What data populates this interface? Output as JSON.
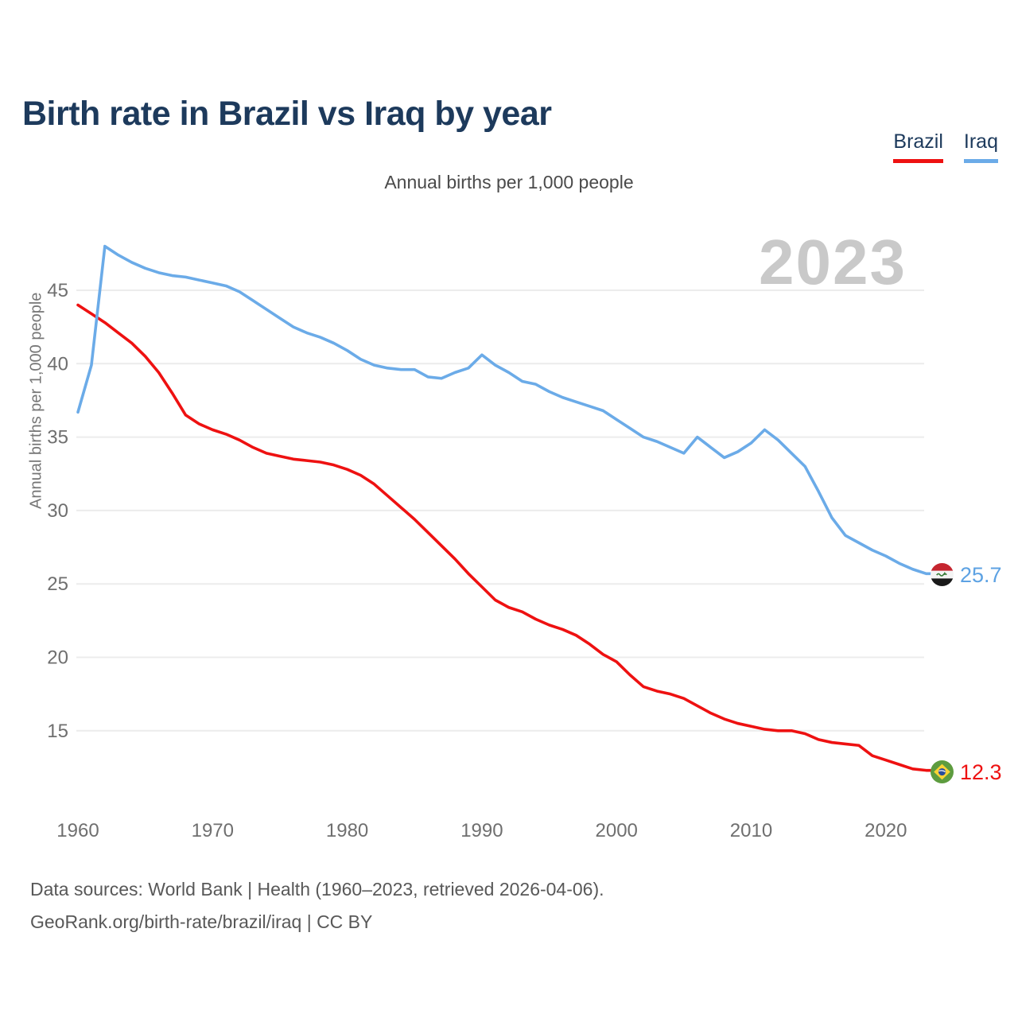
{
  "header": {
    "title": "Birth rate in Brazil vs Iraq by year"
  },
  "legend": {
    "items": [
      {
        "label": "Brazil",
        "color": "#ee1111"
      },
      {
        "label": "Iraq",
        "color": "#6babe8"
      }
    ]
  },
  "chart": {
    "subtitle": "Annual births per 1,000 people",
    "watermark": "2023",
    "y_axis_title": "Annual births per 1,000 people",
    "end_labels": {
      "iraq": "25.7",
      "brazil": "12.3"
    }
  },
  "chart_data": {
    "type": "line",
    "title": "Birth rate in Brazil vs Iraq by year",
    "ylabel": "Annual births per 1,000 people",
    "x": [
      1960,
      1961,
      1962,
      1963,
      1964,
      1965,
      1966,
      1967,
      1968,
      1969,
      1970,
      1971,
      1972,
      1973,
      1974,
      1975,
      1976,
      1977,
      1978,
      1979,
      1980,
      1981,
      1982,
      1983,
      1984,
      1985,
      1986,
      1987,
      1988,
      1989,
      1990,
      1991,
      1992,
      1993,
      1994,
      1995,
      1996,
      1997,
      1998,
      1999,
      2000,
      2001,
      2002,
      2003,
      2004,
      2005,
      2006,
      2007,
      2008,
      2009,
      2010,
      2011,
      2012,
      2013,
      2014,
      2015,
      2016,
      2017,
      2018,
      2019,
      2020,
      2021,
      2022,
      2023
    ],
    "series": [
      {
        "name": "Brazil",
        "color": "#ee1111",
        "values": [
          44.0,
          43.4,
          42.8,
          42.1,
          41.4,
          40.5,
          39.4,
          38.0,
          36.5,
          35.9,
          35.5,
          35.2,
          34.8,
          34.3,
          33.9,
          33.7,
          33.5,
          33.4,
          33.3,
          33.1,
          32.8,
          32.4,
          31.8,
          31.0,
          30.2,
          29.4,
          28.5,
          27.6,
          26.7,
          25.7,
          24.8,
          23.9,
          23.4,
          23.1,
          22.6,
          22.2,
          21.9,
          21.5,
          20.9,
          20.2,
          19.7,
          18.8,
          18.0,
          17.7,
          17.5,
          17.2,
          16.7,
          16.2,
          15.8,
          15.5,
          15.3,
          15.1,
          15.0,
          15.0,
          14.8,
          14.4,
          14.2,
          14.1,
          14.0,
          13.3,
          13.0,
          12.7,
          12.4,
          12.3
        ]
      },
      {
        "name": "Iraq",
        "color": "#6babe8",
        "values": [
          36.7,
          39.9,
          48.0,
          47.4,
          46.9,
          46.5,
          46.2,
          46.0,
          45.9,
          45.7,
          45.5,
          45.3,
          44.9,
          44.3,
          43.7,
          43.1,
          42.5,
          42.1,
          41.8,
          41.4,
          40.9,
          40.3,
          39.9,
          39.7,
          39.6,
          39.6,
          39.1,
          39.0,
          39.4,
          39.7,
          40.6,
          39.9,
          39.4,
          38.8,
          38.6,
          38.1,
          37.7,
          37.4,
          37.1,
          36.8,
          36.2,
          35.6,
          35.0,
          34.7,
          34.3,
          33.9,
          35.0,
          34.3,
          33.6,
          34.0,
          34.6,
          35.5,
          34.8,
          33.9,
          33.0,
          31.3,
          29.5,
          28.3,
          27.8,
          27.3,
          26.9,
          26.4,
          26.0,
          25.7
        ]
      }
    ],
    "xticks": [
      1960,
      1970,
      1980,
      1990,
      2000,
      2010,
      2020
    ],
    "yticks": [
      15,
      20,
      25,
      30,
      35,
      40,
      45
    ],
    "xlim": [
      1960,
      2023
    ],
    "ylim": [
      11.5,
      49
    ],
    "grid": "horizontal",
    "legend_position": "top-right",
    "end_label_year": 2023,
    "end_label_values": {
      "Brazil": 12.3,
      "Iraq": 25.7
    }
  },
  "footer": {
    "line1": "Data sources: World Bank | Health (1960–2023, retrieved 2026-04-06).",
    "line2": "GeoRank.org/birth-rate/brazil/iraq | CC BY"
  }
}
